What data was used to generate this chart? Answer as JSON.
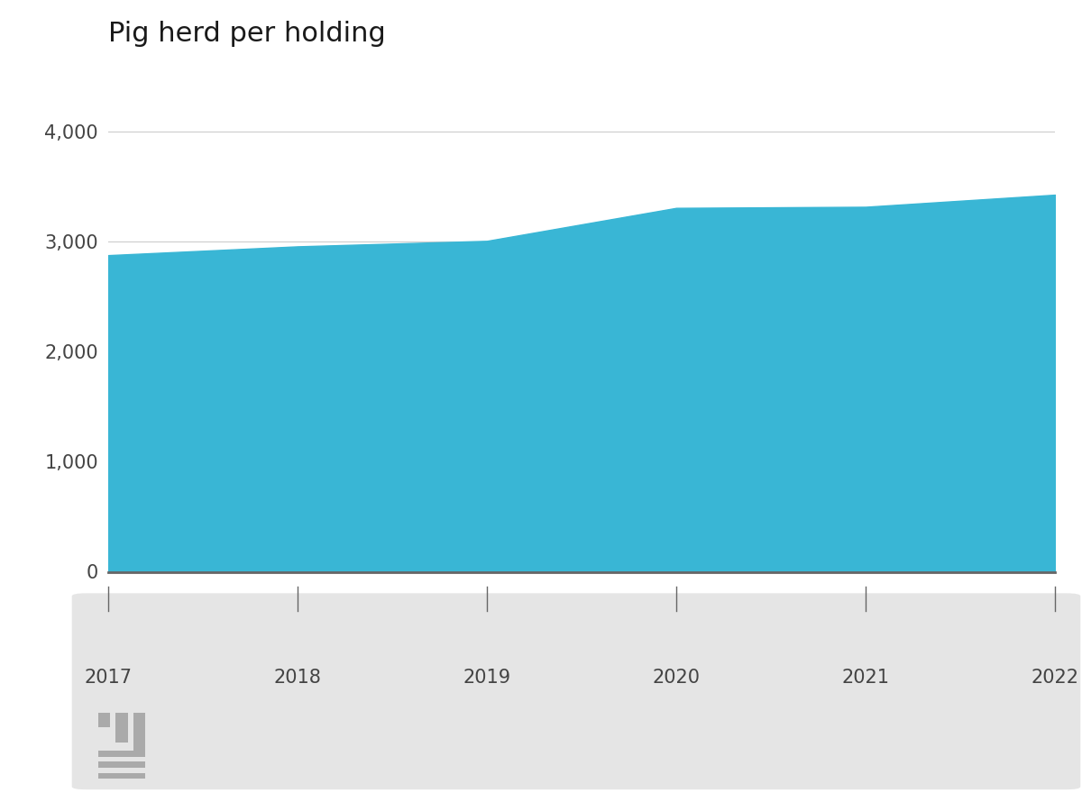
{
  "title": "Pig herd per holding",
  "title_fontsize": 22,
  "title_color": "#1a1a1a",
  "years": [
    2017,
    2018,
    2019,
    2020,
    2021,
    2022
  ],
  "values": [
    2880,
    2960,
    3010,
    3310,
    3320,
    3430
  ],
  "fill_color": "#39b6d5",
  "background_color": "#ffffff",
  "panel_color": "#e5e5e5",
  "ylim": [
    0,
    4500
  ],
  "yticks": [
    0,
    1000,
    2000,
    3000,
    4000
  ],
  "grid_color": "#cccccc",
  "axis_line_color": "#666666",
  "tick_label_color": "#444444",
  "tick_label_fontsize": 15,
  "logo_color": "#aaaaaa",
  "ytick_label_fontsize": 15
}
